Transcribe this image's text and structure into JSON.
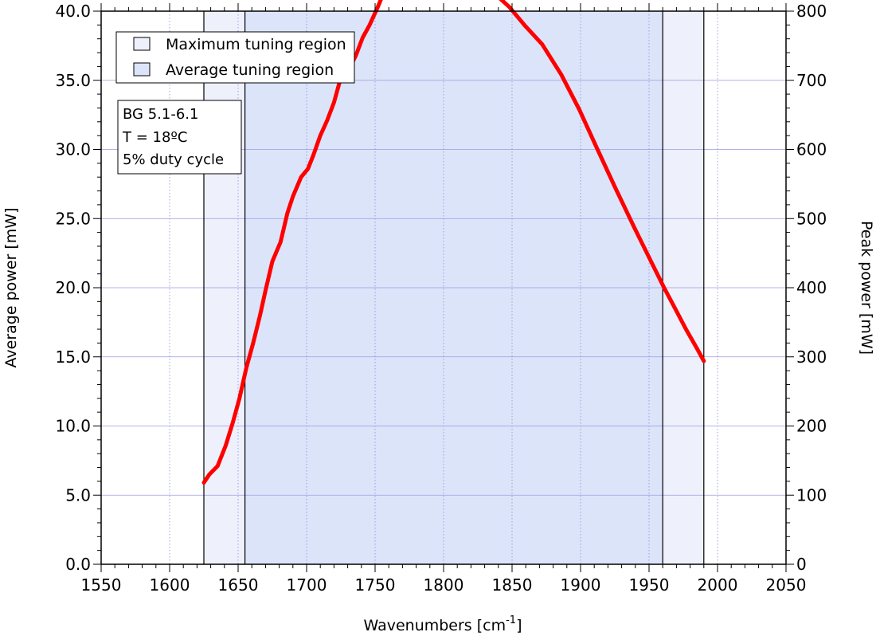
{
  "chart_data": {
    "type": "line",
    "xlabel": "Wavenumbers [cm",
    "xlabel_superscript": "-1",
    "xlabel_suffix": "]",
    "ylabel": "Average power [mW]",
    "y2label": "Peak power [mW]",
    "xlim": [
      1550,
      2050
    ],
    "ylim": [
      0,
      40
    ],
    "y2lim": [
      0,
      800
    ],
    "xticks": [
      "1550",
      "1600",
      "1650",
      "1700",
      "1750",
      "1800",
      "1850",
      "1900",
      "1950",
      "2000",
      "2050"
    ],
    "yticks": [
      "0.0",
      "5.0",
      "10.0",
      "15.0",
      "20.0",
      "25.0",
      "30.0",
      "35.0",
      "40.0"
    ],
    "y2ticks": [
      "0",
      "100",
      "200",
      "300",
      "400",
      "500",
      "600",
      "700",
      "800"
    ],
    "grid": true,
    "regions": [
      {
        "name": "Maximum tuning region",
        "x": [
          1625,
          1990
        ],
        "color": "#eef1fc"
      },
      {
        "name": "Average tuning region",
        "x": [
          1655,
          1960
        ],
        "color": "#dce4fa"
      }
    ],
    "series": [
      {
        "color": "#ff0000",
        "x": [
          1625,
          1629,
          1635,
          1641,
          1646,
          1651,
          1656,
          1661,
          1666,
          1670,
          1675,
          1681,
          1686,
          1690,
          1696,
          1701,
          1705,
          1710,
          1715,
          1720,
          1725,
          1730,
          1736,
          1741,
          1746,
          1752,
          1757,
          1764,
          1770,
          1775,
          1784,
          1793,
          1802,
          1810,
          1817,
          1826,
          1837,
          1848,
          1859,
          1872,
          1886,
          1899,
          1911,
          1925,
          1939,
          1952,
          1961,
          1969,
          1977,
          1985,
          1990
        ],
        "y": [
          5.9,
          6.5,
          7.1,
          8.6,
          10.2,
          12.0,
          14.2,
          16.0,
          18.0,
          19.8,
          21.9,
          23.3,
          25.4,
          26.6,
          28.0,
          28.6,
          29.6,
          31.0,
          32.1,
          33.4,
          35.2,
          35.6,
          36.8,
          38.1,
          39.0,
          40.3,
          41.5,
          42.2,
          42.7,
          43.1,
          43.3,
          42.7,
          43.1,
          43.0,
          42.6,
          41.9,
          41.3,
          40.3,
          39.0,
          37.6,
          35.4,
          32.9,
          30.3,
          27.3,
          24.4,
          21.8,
          20.0,
          18.5,
          17.0,
          15.6,
          14.7
        ]
      }
    ]
  },
  "legend": {
    "items": [
      {
        "label": "Maximum tuning region",
        "color": "#eef1fc"
      },
      {
        "label": "Average tuning region",
        "color": "#dce4fa"
      }
    ]
  },
  "info_box": {
    "lines": [
      "BG 5.1-6.1",
      "T = 18ºC",
      "5% duty cycle"
    ]
  }
}
